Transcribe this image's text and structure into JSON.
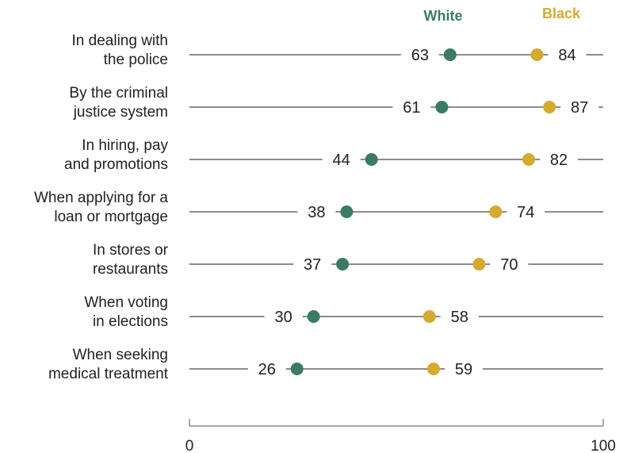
{
  "chart_data": {
    "type": "dot",
    "categories": [
      [
        "In dealing with",
        "the police"
      ],
      [
        "By the criminal",
        "justice system"
      ],
      [
        "In hiring, pay",
        "and promotions"
      ],
      [
        "When applying for a",
        "loan or mortgage"
      ],
      [
        "In stores or",
        "restaurants"
      ],
      [
        "When voting",
        "in elections"
      ],
      [
        "When seeking",
        "medical treatment"
      ]
    ],
    "series": [
      {
        "name": "White",
        "color": "#3a7a67",
        "values": [
          63,
          61,
          44,
          38,
          37,
          30,
          26
        ]
      },
      {
        "name": "Black",
        "color": "#d4aa2f",
        "values": [
          84,
          87,
          82,
          74,
          70,
          58,
          59
        ]
      }
    ],
    "xlim": [
      0,
      100
    ],
    "x_ticks": [
      "0",
      "100"
    ],
    "grid": false,
    "legend_position": "top"
  }
}
